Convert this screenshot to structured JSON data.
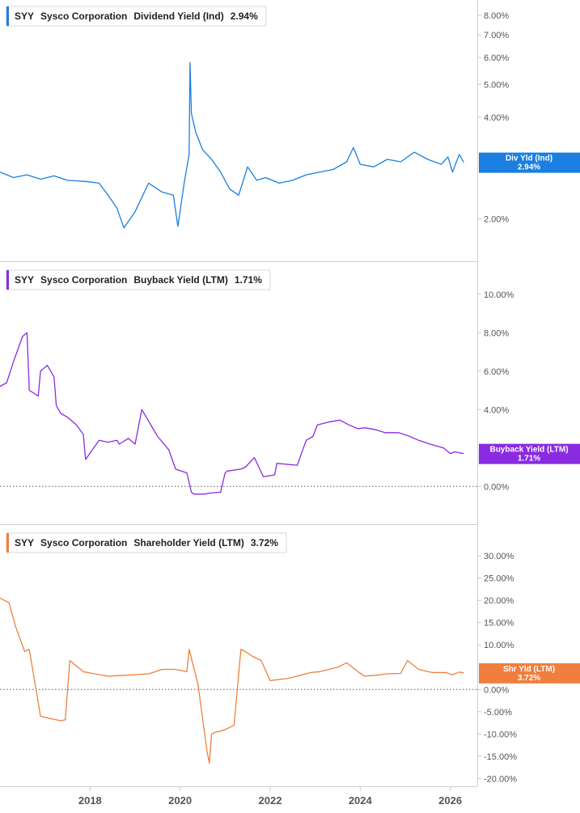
{
  "chart_data": [
    {
      "type": "line",
      "ticker": "SYY",
      "company": "Sysco Corporation",
      "metric": "Dividend Yield (Ind)",
      "current_value": "2.94%",
      "tag_label": "Div Yld (Ind)",
      "color": "#1a7fe0",
      "scale": "log",
      "ylim": [
        1.7,
        8.5
      ],
      "y_ticks": [
        {
          "value": 2.0,
          "label": "2.00%"
        },
        {
          "value": 4.0,
          "label": "4.00%"
        },
        {
          "value": 5.0,
          "label": "5.00%"
        },
        {
          "value": 6.0,
          "label": "6.00%"
        },
        {
          "value": 7.0,
          "label": "7.00%"
        },
        {
          "value": 8.0,
          "label": "8.00%"
        }
      ],
      "series": [
        {
          "x": [
            2016.0,
            2016.3,
            2016.6,
            2016.9,
            2017.2,
            2017.5,
            2017.9,
            2018.2,
            2018.4,
            2018.6,
            2018.75,
            2019.0,
            2019.3,
            2019.6,
            2019.85,
            2019.95,
            2020.1,
            2020.2,
            2020.22,
            2020.25,
            2020.35,
            2020.5,
            2020.7,
            2020.9,
            2021.1,
            2021.3,
            2021.5,
            2021.7,
            2021.9,
            2022.2,
            2022.5,
            2022.8,
            2023.1,
            2023.4,
            2023.7,
            2023.85,
            2024.0,
            2024.3,
            2024.6,
            2024.9,
            2025.2,
            2025.5,
            2025.8,
            2025.95,
            2026.05,
            2026.2,
            2026.3
          ],
          "y": [
            2.75,
            2.65,
            2.7,
            2.62,
            2.68,
            2.6,
            2.58,
            2.55,
            2.35,
            2.15,
            1.88,
            2.1,
            2.55,
            2.4,
            2.35,
            1.9,
            2.6,
            3.1,
            5.8,
            4.1,
            3.6,
            3.2,
            3.0,
            2.75,
            2.45,
            2.35,
            2.85,
            2.6,
            2.65,
            2.55,
            2.6,
            2.7,
            2.75,
            2.8,
            2.95,
            3.25,
            2.9,
            2.85,
            3.0,
            2.95,
            3.15,
            3.0,
            2.9,
            3.05,
            2.75,
            3.1,
            2.94
          ]
        }
      ]
    },
    {
      "type": "line",
      "ticker": "SYY",
      "company": "Sysco Corporation",
      "metric": "Buyback Yield (LTM)",
      "current_value": "1.71%",
      "tag_label": "Buyback Yield (LTM)",
      "color": "#8a2be2",
      "ylim": [
        -1.0,
        11.0
      ],
      "zero_line": true,
      "y_ticks": [
        {
          "value": 0,
          "label": "0.00%"
        },
        {
          "value": 4,
          "label": "4.00%"
        },
        {
          "value": 6,
          "label": "6.00%"
        },
        {
          "value": 8,
          "label": "8.00%"
        },
        {
          "value": 10,
          "label": "10.00%"
        }
      ],
      "series": [
        {
          "x": [
            2016.0,
            2016.15,
            2016.3,
            2016.5,
            2016.6,
            2016.65,
            2016.85,
            2016.9,
            2017.05,
            2017.2,
            2017.25,
            2017.35,
            2017.5,
            2017.7,
            2017.85,
            2017.9,
            2018.2,
            2018.4,
            2018.6,
            2018.65,
            2018.85,
            2019.0,
            2019.15,
            2019.5,
            2019.75,
            2019.9,
            2020.15,
            2020.2,
            2020.25,
            2020.3,
            2020.55,
            2020.65,
            2020.9,
            2021.0,
            2021.05,
            2021.35,
            2021.45,
            2021.65,
            2021.85,
            2022.1,
            2022.15,
            2022.6,
            2022.8,
            2022.95,
            2023.05,
            2023.3,
            2023.55,
            2023.75,
            2023.95,
            2024.1,
            2024.35,
            2024.55,
            2024.85,
            2025.1,
            2025.3,
            2025.55,
            2025.85,
            2026.0,
            2026.1,
            2026.2,
            2026.3
          ],
          "y": [
            5.2,
            5.4,
            6.5,
            7.8,
            8.0,
            5.0,
            4.7,
            6.0,
            6.3,
            5.7,
            4.2,
            3.8,
            3.6,
            3.2,
            2.7,
            1.4,
            2.4,
            2.3,
            2.4,
            2.2,
            2.5,
            2.2,
            4.0,
            2.6,
            1.9,
            0.9,
            0.7,
            0.2,
            -0.3,
            -0.4,
            -0.4,
            -0.35,
            -0.3,
            0.7,
            0.8,
            0.9,
            1.0,
            1.5,
            0.5,
            0.6,
            1.2,
            1.1,
            2.4,
            2.6,
            3.2,
            3.35,
            3.45,
            3.2,
            3.0,
            3.05,
            2.95,
            2.8,
            2.8,
            2.6,
            2.4,
            2.2,
            2.0,
            1.71,
            1.8,
            1.75,
            1.71
          ]
        }
      ]
    },
    {
      "type": "line",
      "ticker": "SYY",
      "company": "Sysco Corporation",
      "metric": "Shareholder Yield (LTM)",
      "current_value": "3.72%",
      "tag_label": "Shr Yld (LTM)",
      "color": "#f07f3f",
      "ylim": [
        -21.0,
        34.0
      ],
      "zero_line": true,
      "y_ticks": [
        {
          "value": -20,
          "label": "-20.00%"
        },
        {
          "value": -15,
          "label": "-15.00%"
        },
        {
          "value": -10,
          "label": "-10.00%"
        },
        {
          "value": -5,
          "label": "-5.00%"
        },
        {
          "value": 0,
          "label": "0.00%"
        },
        {
          "value": 10,
          "label": "10.00%"
        },
        {
          "value": 15,
          "label": "15.00%"
        },
        {
          "value": 20,
          "label": "20.00%"
        },
        {
          "value": 25,
          "label": "25.00%"
        },
        {
          "value": 30,
          "label": "30.00%"
        }
      ],
      "series": [
        {
          "x": [
            2016.0,
            2016.2,
            2016.35,
            2016.55,
            2016.65,
            2016.9,
            2017.1,
            2017.35,
            2017.45,
            2017.55,
            2017.85,
            2018.1,
            2018.4,
            2018.8,
            2019.3,
            2019.6,
            2019.9,
            2020.15,
            2020.2,
            2020.25,
            2020.4,
            2020.6,
            2020.65,
            2020.7,
            2020.8,
            2020.85,
            2021.0,
            2021.2,
            2021.35,
            2021.45,
            2021.6,
            2021.8,
            2022.0,
            2022.4,
            2022.6,
            2022.9,
            2023.1,
            2023.3,
            2023.5,
            2023.7,
            2023.95,
            2024.1,
            2024.35,
            2024.6,
            2024.9,
            2025.05,
            2025.3,
            2025.6,
            2025.9,
            2026.05,
            2026.2,
            2026.3
          ],
          "y": [
            20.5,
            19.5,
            14.0,
            8.5,
            9.0,
            -6.0,
            -6.5,
            -7.0,
            -6.8,
            6.5,
            4.0,
            3.5,
            3.0,
            3.2,
            3.5,
            4.5,
            4.5,
            4.0,
            9.0,
            7.0,
            1.0,
            -14.0,
            -16.5,
            -10.0,
            -9.5,
            -9.5,
            -9.0,
            -8.0,
            9.0,
            8.5,
            7.5,
            6.5,
            2.0,
            2.5,
            3.0,
            3.8,
            4.0,
            4.5,
            5.0,
            6.0,
            4.0,
            3.0,
            3.2,
            3.5,
            3.6,
            6.5,
            4.5,
            3.8,
            3.8,
            3.3,
            3.9,
            3.72
          ]
        }
      ]
    }
  ],
  "x_axis": {
    "xlim": [
      2016.0,
      2026.6
    ],
    "ticks": [
      {
        "value": 2018,
        "label": "2018"
      },
      {
        "value": 2020,
        "label": "2020"
      },
      {
        "value": 2022,
        "label": "2022"
      },
      {
        "value": 2024,
        "label": "2024"
      },
      {
        "value": 2026,
        "label": "2026"
      }
    ]
  }
}
